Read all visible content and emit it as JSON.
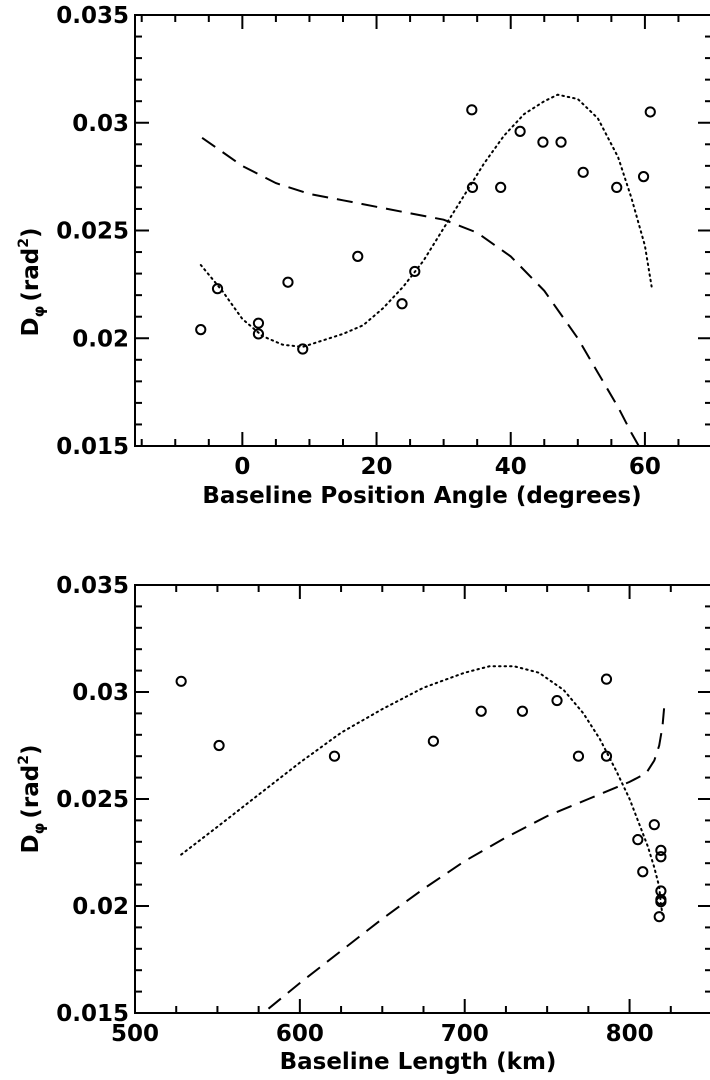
{
  "chart_data": [
    {
      "type": "scatter",
      "xlabel": "Baseline Position Angle (degrees)",
      "ylabel": {
        "main": "D",
        "sub": "φ",
        "unit_open": "(rad",
        "unit_sup": "2",
        "unit_close": ")"
      },
      "xlim": [
        -16,
        70
      ],
      "ylim": [
        0.015,
        0.035
      ],
      "x_ticks": [
        0,
        20,
        40,
        60
      ],
      "x_tick_labels": [
        "0",
        "20",
        "40",
        "60"
      ],
      "y_ticks": [
        0.015,
        0.02,
        0.025,
        0.03,
        0.035
      ],
      "y_tick_labels": [
        "0.015",
        "0.02",
        "0.025",
        "0.03",
        "0.035"
      ],
      "series": [
        {
          "style": "markers",
          "x": [
            -6.2,
            -3.7,
            2.4,
            2.4,
            6.8,
            9.0,
            17.2,
            23.8,
            25.7,
            34.2,
            34.3,
            38.5,
            41.4,
            44.8,
            47.5,
            50.8,
            55.8,
            59.8,
            60.8
          ],
          "y": [
            0.0204,
            0.0223,
            0.0207,
            0.0202,
            0.0226,
            0.0195,
            0.0238,
            0.0216,
            0.0231,
            0.0306,
            0.027,
            0.027,
            0.0296,
            0.0291,
            0.0291,
            0.0277,
            0.027,
            0.0275,
            0.0305
          ]
        },
        {
          "style": "dotted",
          "x": [
            -6.2,
            -3,
            0,
            3,
            6,
            9,
            12,
            15,
            18,
            21,
            24,
            27,
            30,
            33,
            36,
            39,
            42,
            45,
            47,
            50,
            53,
            56,
            58,
            60,
            61
          ],
          "y": [
            0.0234,
            0.0222,
            0.0209,
            0.0201,
            0.0197,
            0.0196,
            0.0199,
            0.0202,
            0.0206,
            0.0214,
            0.0224,
            0.0236,
            0.0251,
            0.0266,
            0.0281,
            0.0294,
            0.0304,
            0.031,
            0.0313,
            0.0311,
            0.0302,
            0.0284,
            0.0265,
            0.0243,
            0.0224
          ]
        },
        {
          "style": "dashed",
          "x": [
            -6,
            0,
            5,
            10,
            15,
            20,
            25,
            30,
            35,
            40,
            45,
            50,
            53,
            56,
            58,
            60
          ],
          "y": [
            0.0293,
            0.028,
            0.0272,
            0.0267,
            0.0264,
            0.0261,
            0.0258,
            0.0255,
            0.0249,
            0.0238,
            0.0222,
            0.02,
            0.0184,
            0.0168,
            0.0156,
            0.0145
          ]
        }
      ]
    },
    {
      "type": "scatter",
      "xlabel": "Baseline Length (km)",
      "ylabel": {
        "main": "D",
        "sub": "φ",
        "unit_open": "(rad",
        "unit_sup": "2",
        "unit_close": ")"
      },
      "xlim": [
        500,
        850
      ],
      "ylim": [
        0.015,
        0.035
      ],
      "x_ticks": [
        500,
        600,
        700,
        800
      ],
      "x_tick_labels": [
        "500",
        "600",
        "700",
        "800"
      ],
      "y_ticks": [
        0.015,
        0.02,
        0.025,
        0.03,
        0.035
      ],
      "y_tick_labels": [
        "0.015",
        "0.02",
        "0.025",
        "0.03",
        "0.035"
      ],
      "series": [
        {
          "style": "markers",
          "x": [
            528,
            551,
            621,
            681,
            710,
            735,
            756,
            769,
            786,
            786,
            805,
            808,
            815,
            819,
            819,
            819,
            819,
            819,
            818
          ],
          "y": [
            0.0305,
            0.0275,
            0.027,
            0.0277,
            0.0291,
            0.0291,
            0.0296,
            0.027,
            0.0306,
            0.027,
            0.0231,
            0.0216,
            0.0238,
            0.0226,
            0.0223,
            0.0207,
            0.0203,
            0.0202,
            0.0195
          ]
        },
        {
          "style": "dotted",
          "x": [
            528,
            550,
            575,
            600,
            625,
            650,
            675,
            700,
            715,
            730,
            745,
            760,
            772,
            782,
            792,
            800,
            806,
            811,
            815,
            818,
            819,
            820
          ],
          "y": [
            0.0224,
            0.0237,
            0.0252,
            0.0267,
            0.0281,
            0.0292,
            0.0302,
            0.0309,
            0.0312,
            0.0312,
            0.0309,
            0.0301,
            0.029,
            0.0278,
            0.0263,
            0.025,
            0.0238,
            0.0228,
            0.0218,
            0.0209,
            0.0201,
            0.0196
          ]
        },
        {
          "style": "dashed",
          "x": [
            581,
            600,
            625,
            650,
            675,
            700,
            725,
            750,
            775,
            800,
            810,
            815,
            818,
            820,
            821
          ],
          "y": [
            0.0152,
            0.0164,
            0.0179,
            0.0194,
            0.0208,
            0.0221,
            0.0232,
            0.0242,
            0.025,
            0.0258,
            0.0262,
            0.0268,
            0.0275,
            0.0284,
            0.0293
          ]
        }
      ]
    }
  ]
}
